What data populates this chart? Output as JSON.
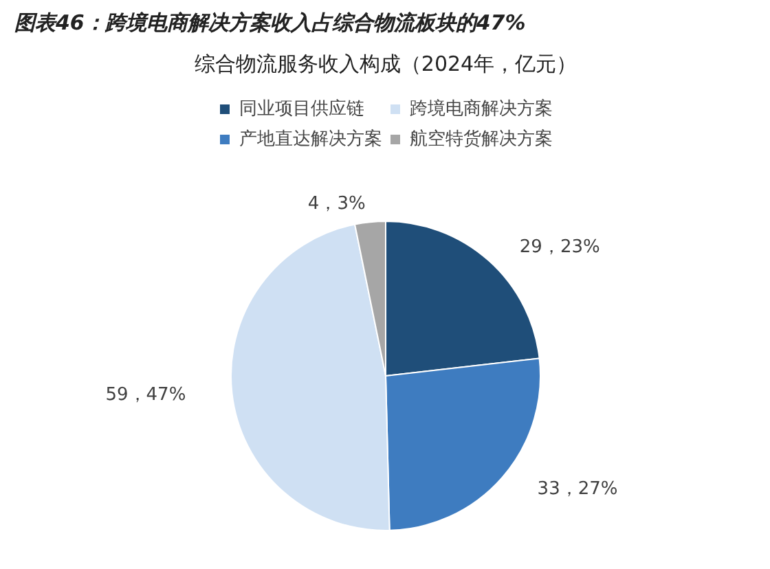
{
  "chart_data": {
    "type": "pie",
    "title": "图表46：跨境电商解决方案收入占综合物流板块的47%",
    "subtitle": "综合物流服务收入构成（2024年，亿元）",
    "categories": [
      "同业项目供应链",
      "产地直达解决方案",
      "跨境电商解决方案",
      "航空特货解决方案"
    ],
    "values": [
      29,
      33,
      59,
      4
    ],
    "colors": [
      "#1f4e79",
      "#3e7cc0",
      "#cfe0f3",
      "#a6a6a6"
    ],
    "value_labels": [
      "29，23%",
      "33，27%",
      "59，47%",
      "4，3%"
    ],
    "legend": "top"
  }
}
